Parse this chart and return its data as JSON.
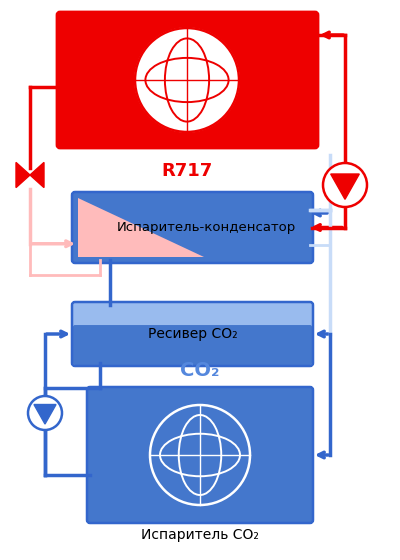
{
  "bg_color": "#ffffff",
  "red_color": "#ee0000",
  "red_light": "#ffbbbb",
  "blue_dark": "#3366cc",
  "blue_mid": "#5588dd",
  "blue_mid2": "#4477cc",
  "blue_light": "#99bbee",
  "blue_pale": "#c8dcf8",
  "r717_label": "R717",
  "evap_cond_label": "Испаритель-конденсатор",
  "receiver_label": "Ресивер CO₂",
  "evap_co2_label": "Испаритель CO₂",
  "co2_label": "CO₂"
}
